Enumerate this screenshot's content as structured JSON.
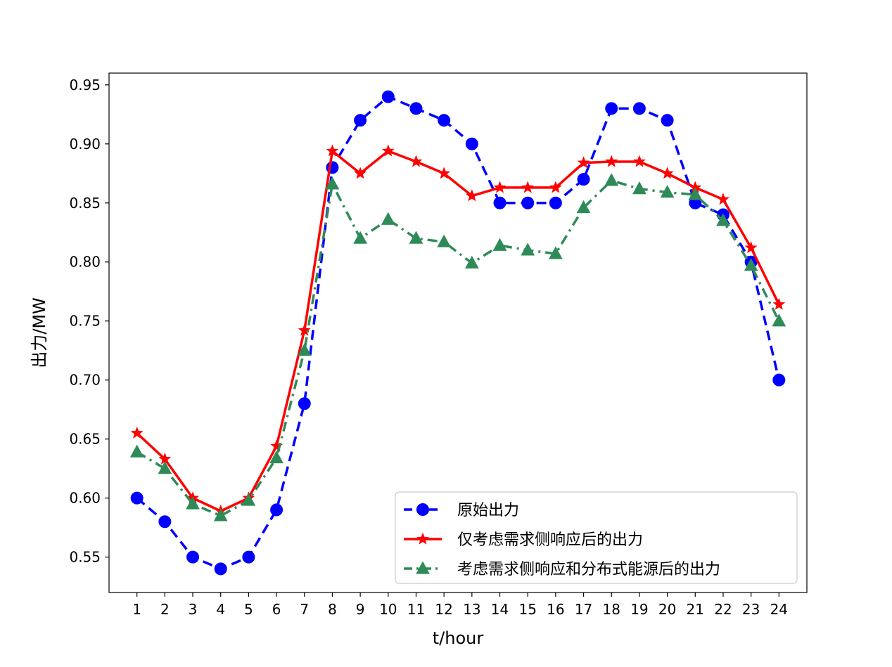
{
  "chart_data": {
    "type": "line",
    "xlabel": "t/hour",
    "ylabel": "出力/MW",
    "xlim": [
      0,
      25
    ],
    "ylim": [
      0.52,
      0.96
    ],
    "x_ticks": [
      1,
      2,
      3,
      4,
      5,
      6,
      7,
      8,
      9,
      10,
      11,
      12,
      13,
      14,
      15,
      16,
      17,
      18,
      19,
      20,
      21,
      22,
      23,
      24
    ],
    "y_ticks": [
      "0.55",
      "0.60",
      "0.65",
      "0.70",
      "0.75",
      "0.80",
      "0.85",
      "0.90",
      "0.95"
    ],
    "grid": false,
    "legend_position": "lower-right",
    "x": [
      1,
      2,
      3,
      4,
      5,
      6,
      7,
      8,
      9,
      10,
      11,
      12,
      13,
      14,
      15,
      16,
      17,
      18,
      19,
      20,
      21,
      22,
      23,
      24
    ],
    "series": [
      {
        "name": "原始出力",
        "color": "#0000ff",
        "line_style": "dashed",
        "marker": "circle",
        "values": [
          0.6,
          0.58,
          0.55,
          0.54,
          0.55,
          0.59,
          0.68,
          0.88,
          0.92,
          0.94,
          0.93,
          0.92,
          0.9,
          0.85,
          0.85,
          0.85,
          0.87,
          0.93,
          0.93,
          0.92,
          0.85,
          0.84,
          0.8,
          0.7
        ]
      },
      {
        "name": "仅考虑需求侧响应后的出力",
        "color": "#ff0000",
        "line_style": "solid",
        "marker": "star",
        "values": [
          0.655,
          0.633,
          0.6,
          0.589,
          0.6,
          0.644,
          0.742,
          0.894,
          0.875,
          0.894,
          0.885,
          0.875,
          0.856,
          0.863,
          0.863,
          0.863,
          0.884,
          0.885,
          0.885,
          0.875,
          0.863,
          0.853,
          0.812,
          0.764
        ]
      },
      {
        "name": "考虑需求侧响应和分布式能源后的出力",
        "color": "#2e8b57",
        "line_style": "dashdot",
        "marker": "triangle",
        "values": [
          0.639,
          0.625,
          0.595,
          0.585,
          0.598,
          0.634,
          0.725,
          0.866,
          0.82,
          0.836,
          0.82,
          0.817,
          0.799,
          0.814,
          0.81,
          0.807,
          0.846,
          0.869,
          0.862,
          0.859,
          0.857,
          0.835,
          0.797,
          0.75
        ]
      }
    ]
  }
}
